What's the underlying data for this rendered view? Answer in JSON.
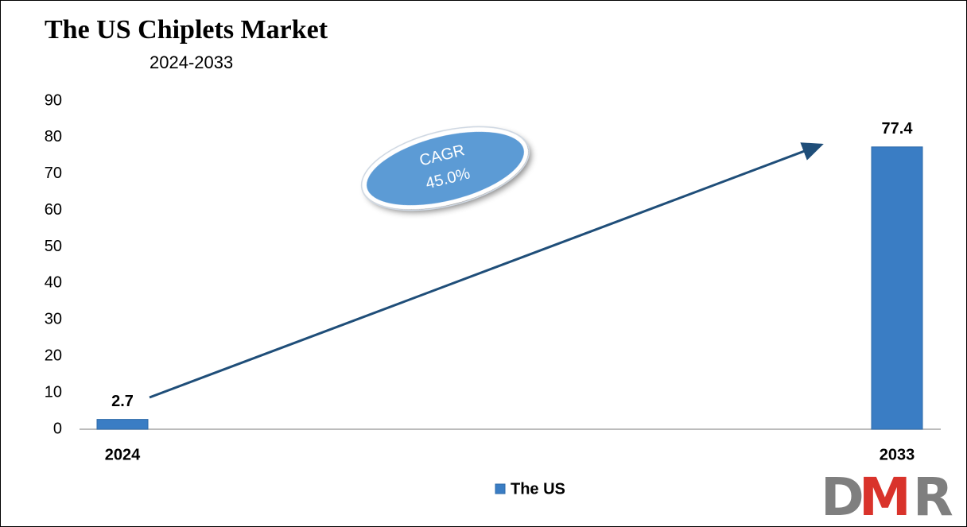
{
  "chart_data": {
    "type": "bar",
    "title": "The US Chiplets Market",
    "subtitle": "2024-2033",
    "categories": [
      "2024",
      "2033"
    ],
    "series": [
      {
        "name": "The US",
        "color": "#3a7dc4",
        "values": [
          2.7,
          77.4
        ]
      }
    ],
    "ylim": [
      0,
      90
    ],
    "yticks": [
      0,
      10,
      20,
      30,
      40,
      50,
      60,
      70,
      80,
      90
    ],
    "grid": false,
    "annotations": [
      "CAGR",
      "45.0%"
    ],
    "logo": [
      "D",
      "M",
      "R"
    ]
  }
}
